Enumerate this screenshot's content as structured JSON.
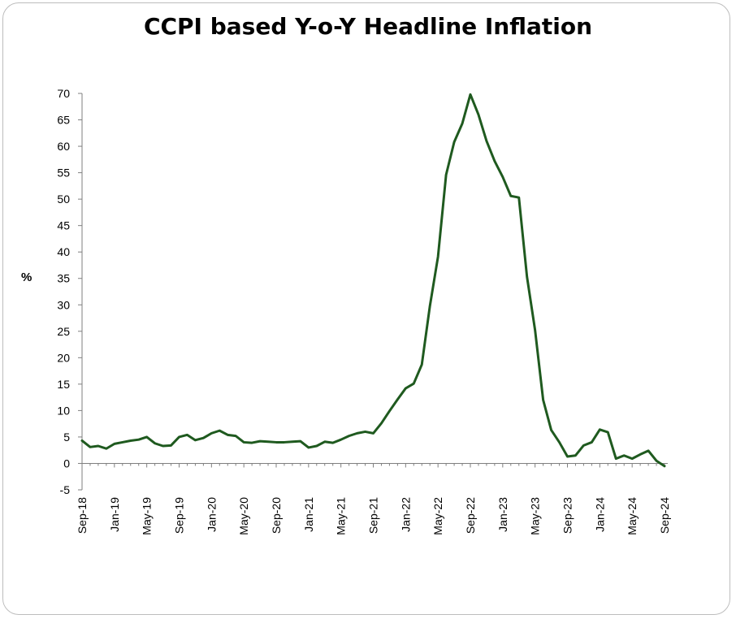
{
  "chart_data": {
    "type": "line",
    "title": "CCPI based Y-o-Y Headline Inflation",
    "ylabel": "%",
    "xlabel": "",
    "ylim": [
      -5,
      70
    ],
    "yticks": [
      -5,
      0,
      5,
      10,
      15,
      20,
      25,
      30,
      35,
      40,
      45,
      50,
      55,
      60,
      65,
      70
    ],
    "xtick_labels": [
      "Sep-18",
      "Jan-19",
      "May-19",
      "Sep-19",
      "Jan-20",
      "May-20",
      "Sep-20",
      "Jan-21",
      "May-21",
      "Sep-21",
      "Jan-22",
      "May-22",
      "Sep-22",
      "Jan-23",
      "May-23",
      "Sep-23",
      "Jan-24",
      "May-24",
      "Sep-24"
    ],
    "grid": false,
    "legend": "none",
    "line_color": "#1f5a1f",
    "series": [
      {
        "x": [
          "Sep-18",
          "Oct-18",
          "Nov-18",
          "Dec-18",
          "Jan-19",
          "Feb-19",
          "Mar-19",
          "Apr-19",
          "May-19",
          "Jun-19",
          "Jul-19",
          "Aug-19",
          "Sep-19",
          "Oct-19",
          "Nov-19",
          "Dec-19",
          "Jan-20",
          "Feb-20",
          "Mar-20",
          "Apr-20",
          "May-20",
          "Jun-20",
          "Jul-20",
          "Aug-20",
          "Sep-20",
          "Oct-20",
          "Nov-20",
          "Dec-20",
          "Jan-21",
          "Feb-21",
          "Mar-21",
          "Apr-21",
          "May-21",
          "Jun-21",
          "Jul-21",
          "Aug-21",
          "Sep-21",
          "Oct-21",
          "Nov-21",
          "Dec-21",
          "Jan-22",
          "Feb-22",
          "Mar-22",
          "Apr-22",
          "May-22",
          "Jun-22",
          "Jul-22",
          "Aug-22",
          "Sep-22",
          "Oct-22",
          "Nov-22",
          "Dec-22",
          "Jan-23",
          "Feb-23",
          "Mar-23",
          "Apr-23",
          "May-23",
          "Jun-23",
          "Jul-23",
          "Aug-23",
          "Sep-23",
          "Oct-23",
          "Nov-23",
          "Dec-23",
          "Jan-24",
          "Feb-24",
          "Mar-24",
          "Apr-24",
          "May-24",
          "Jun-24",
          "Jul-24",
          "Aug-24",
          "Sep-24"
        ],
        "values": [
          4.3,
          3.1,
          3.3,
          2.8,
          3.7,
          4.0,
          4.3,
          4.5,
          5.0,
          3.8,
          3.3,
          3.4,
          5.0,
          5.4,
          4.4,
          4.8,
          5.7,
          6.2,
          5.4,
          5.2,
          4.0,
          3.9,
          4.2,
          4.1,
          4.0,
          4.0,
          4.1,
          4.2,
          3.0,
          3.3,
          4.1,
          3.9,
          4.5,
          5.2,
          5.7,
          6.0,
          5.7,
          7.6,
          9.9,
          12.1,
          14.2,
          15.1,
          18.7,
          29.8,
          39.1,
          54.6,
          60.8,
          64.3,
          69.8,
          66.0,
          61.0,
          57.2,
          54.2,
          50.6,
          50.3,
          35.3,
          25.2,
          12.0,
          6.3,
          4.0,
          1.3,
          1.5,
          3.4,
          4.0,
          6.4,
          5.9,
          0.9,
          1.5,
          0.9,
          1.7,
          2.4,
          0.5,
          -0.5
        ]
      }
    ]
  }
}
